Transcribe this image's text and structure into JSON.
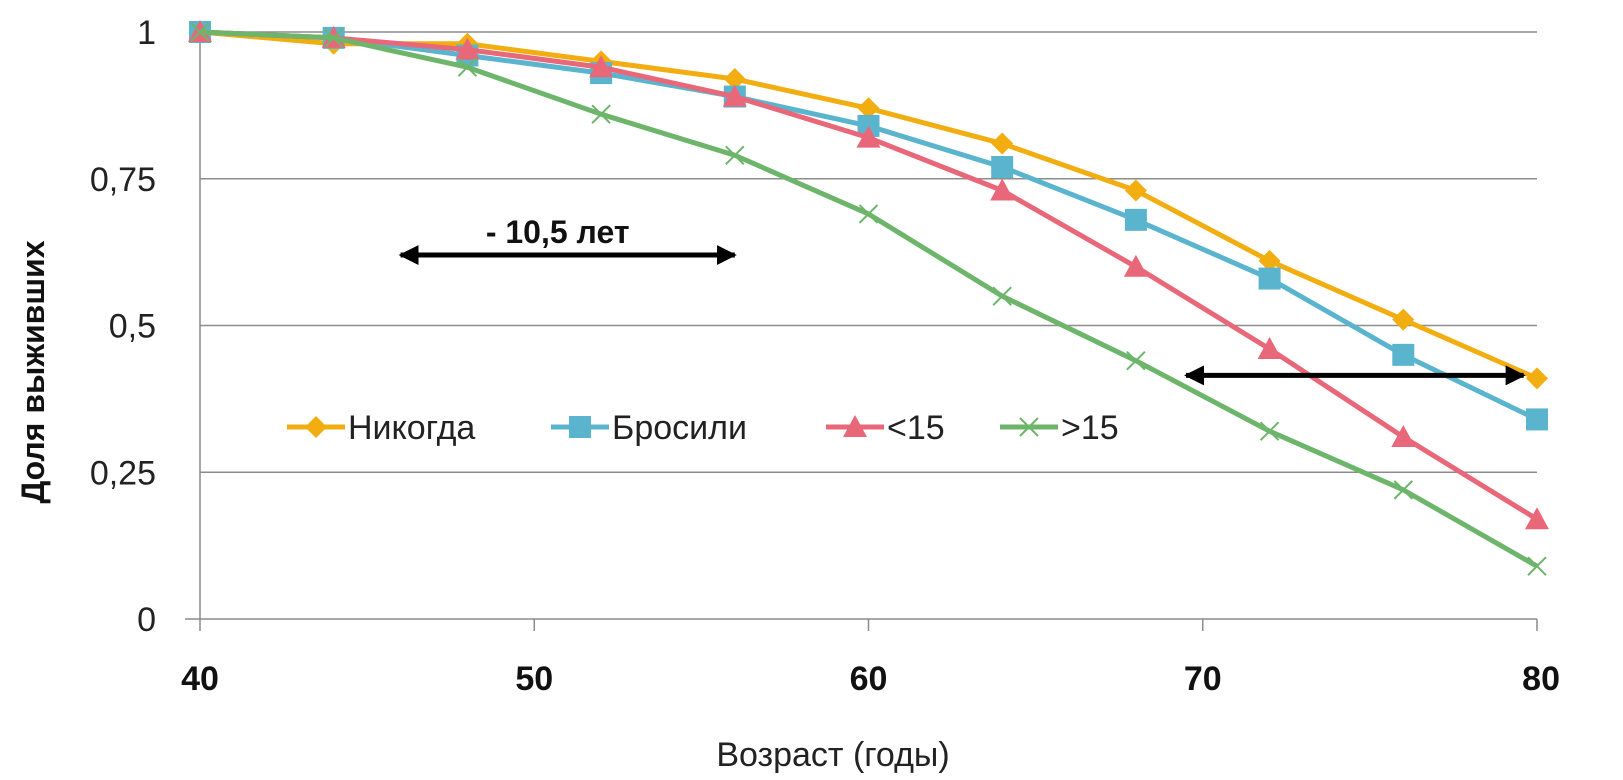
{
  "chart_data": {
    "type": "line",
    "xlabel": "Возраст (годы)",
    "ylabel": "Доля выживших",
    "xlim": [
      40,
      80
    ],
    "ylim": [
      0,
      1
    ],
    "x_ticks": [
      "40",
      "50",
      "60",
      "70",
      "80"
    ],
    "y_ticks": [
      "0",
      "0,25",
      "0,5",
      "0,75",
      "1"
    ],
    "grid": "horizontal",
    "legend": "center-left",
    "x": [
      40,
      44,
      48,
      52,
      56,
      60,
      64,
      68,
      72,
      76,
      80
    ],
    "series": [
      {
        "name": "Никогда",
        "color": "#F2AE10",
        "marker": "diamond",
        "values": [
          1.0,
          0.98,
          0.98,
          0.95,
          0.92,
          0.87,
          0.81,
          0.73,
          0.61,
          0.51,
          0.41
        ]
      },
      {
        "name": "Бросили",
        "color": "#5AB4CE",
        "marker": "square",
        "values": [
          1.0,
          0.99,
          0.96,
          0.93,
          0.89,
          0.84,
          0.77,
          0.68,
          0.58,
          0.45,
          0.34
        ]
      },
      {
        "name": "<15",
        "color": "#E8687A",
        "marker": "triangle",
        "values": [
          1.0,
          0.99,
          0.97,
          0.94,
          0.89,
          0.82,
          0.73,
          0.6,
          0.46,
          0.31,
          0.17
        ]
      },
      {
        "name": ">15",
        "color": "#6DB56A",
        "marker": "x",
        "values": [
          1.0,
          0.99,
          0.94,
          0.86,
          0.79,
          0.69,
          0.55,
          0.44,
          0.32,
          0.22,
          0.09
        ]
      }
    ],
    "annotations": [
      {
        "text": "- 10,5 лет",
        "arrow_x": [
          46,
          56
        ],
        "arrow_y": 0.62
      },
      {
        "text": "",
        "arrow_x": [
          69.5,
          79.6
        ],
        "arrow_y": 0.415
      }
    ]
  }
}
